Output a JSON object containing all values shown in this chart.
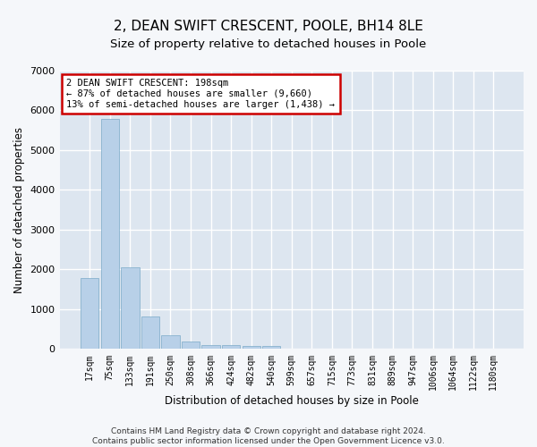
{
  "title": "2, DEAN SWIFT CRESCENT, POOLE, BH14 8LE",
  "subtitle": "Size of property relative to detached houses in Poole",
  "xlabel": "Distribution of detached houses by size in Poole",
  "ylabel": "Number of detached properties",
  "categories": [
    "17sqm",
    "75sqm",
    "133sqm",
    "191sqm",
    "250sqm",
    "308sqm",
    "366sqm",
    "424sqm",
    "482sqm",
    "540sqm",
    "599sqm",
    "657sqm",
    "715sqm",
    "773sqm",
    "831sqm",
    "889sqm",
    "947sqm",
    "1006sqm",
    "1064sqm",
    "1122sqm",
    "1180sqm"
  ],
  "values": [
    1780,
    5780,
    2060,
    820,
    340,
    180,
    110,
    100,
    80,
    80,
    0,
    0,
    0,
    0,
    0,
    0,
    0,
    0,
    0,
    0,
    0
  ],
  "highlight_index": 3,
  "bar_color": "#b8d0e8",
  "bar_edge_color": "#7aaac8",
  "ylim": [
    0,
    7000
  ],
  "yticks": [
    0,
    1000,
    2000,
    3000,
    4000,
    5000,
    6000,
    7000
  ],
  "annotation_text": "2 DEAN SWIFT CRESCENT: 198sqm\n← 87% of detached houses are smaller (9,660)\n13% of semi-detached houses are larger (1,438) →",
  "annotation_box_color": "#ffffff",
  "annotation_box_edge": "#cc0000",
  "footer_line1": "Contains HM Land Registry data © Crown copyright and database right 2024.",
  "footer_line2": "Contains public sector information licensed under the Open Government Licence v3.0.",
  "background_color": "#dde6f0",
  "fig_background_color": "#f5f7fa",
  "grid_color": "#ffffff",
  "title_fontsize": 11,
  "subtitle_fontsize": 9.5,
  "tick_fontsize": 7,
  "ylabel_fontsize": 8.5,
  "xlabel_fontsize": 8.5,
  "footer_fontsize": 6.5
}
